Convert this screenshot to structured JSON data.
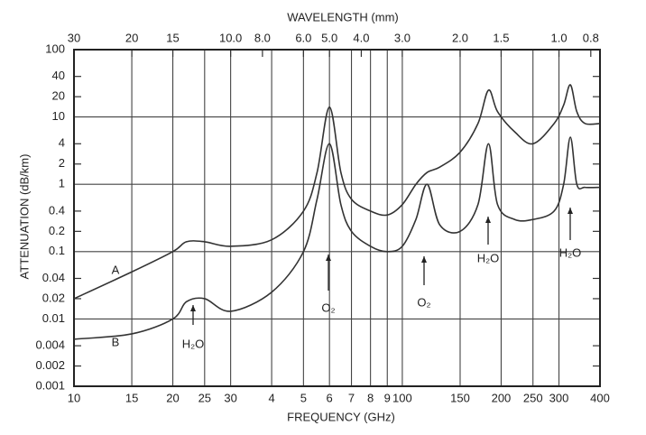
{
  "chart_data": {
    "type": "line",
    "x_label": "FREQUENCY (GHz)",
    "y_label": "ATTENUATION (dB/km)",
    "x2_label": "WAVELENGTH (mm)",
    "xscale": "log",
    "yscale": "log",
    "grid": true,
    "xlim": [
      10,
      400
    ],
    "xticks": [
      10,
      15,
      20,
      25,
      30,
      {
        "value": 40,
        "label": "4"
      },
      {
        "value": 50,
        "label": "5"
      },
      {
        "value": 60,
        "label": "6"
      },
      {
        "value": 70,
        "label": "7"
      },
      {
        "value": 80,
        "label": "8"
      },
      {
        "value": 90,
        "label": "9"
      },
      100,
      150,
      200,
      250,
      300,
      400
    ],
    "x2lim": [
      30,
      0.75
    ],
    "x2ticks": [
      30,
      20,
      15,
      {
        "value": 10,
        "label": "10.0"
      },
      {
        "value": 8,
        "label": "8.0"
      },
      {
        "value": 6,
        "label": "6.0"
      },
      {
        "value": 5,
        "label": "5.0"
      },
      {
        "value": 4,
        "label": "4.0"
      },
      {
        "value": 3,
        "label": "3.0"
      },
      {
        "value": 2,
        "label": "2.0"
      },
      1.5,
      {
        "value": 1,
        "label": "1.0"
      },
      0.8
    ],
    "ylim": [
      0.001,
      100
    ],
    "yticks": [
      100,
      40,
      20,
      10,
      4,
      2,
      1,
      0.4,
      0.2,
      0.1,
      0.04,
      0.02,
      0.01,
      0.004,
      0.002,
      0.001
    ],
    "x": [
      10,
      15,
      20,
      22,
      25,
      30,
      40,
      50,
      55,
      60,
      65,
      70,
      80,
      90,
      100,
      110,
      119,
      130,
      150,
      170,
      183,
      195,
      220,
      250,
      290,
      310,
      325,
      340,
      360,
      400
    ],
    "series": [
      {
        "name": "A",
        "color": "#333333",
        "values": [
          0.02,
          0.05,
          0.1,
          0.14,
          0.14,
          0.12,
          0.15,
          0.4,
          1.5,
          14,
          1.5,
          0.6,
          0.4,
          0.35,
          0.5,
          1,
          1.5,
          1.8,
          3,
          8,
          25,
          12,
          6,
          4,
          8,
          15,
          30,
          12,
          8,
          8
        ]
      },
      {
        "name": "B",
        "color": "#333333",
        "values": [
          0.005,
          0.006,
          0.01,
          0.018,
          0.02,
          0.013,
          0.025,
          0.1,
          0.6,
          4,
          0.5,
          0.2,
          0.12,
          0.1,
          0.12,
          0.3,
          1,
          0.25,
          0.2,
          0.5,
          4,
          0.5,
          0.3,
          0.3,
          0.4,
          1,
          5,
          1,
          0.9,
          0.9
        ]
      }
    ],
    "annotations": [
      "H₂O",
      "O₂",
      "O₂",
      "H₂O",
      "H₂O"
    ]
  }
}
